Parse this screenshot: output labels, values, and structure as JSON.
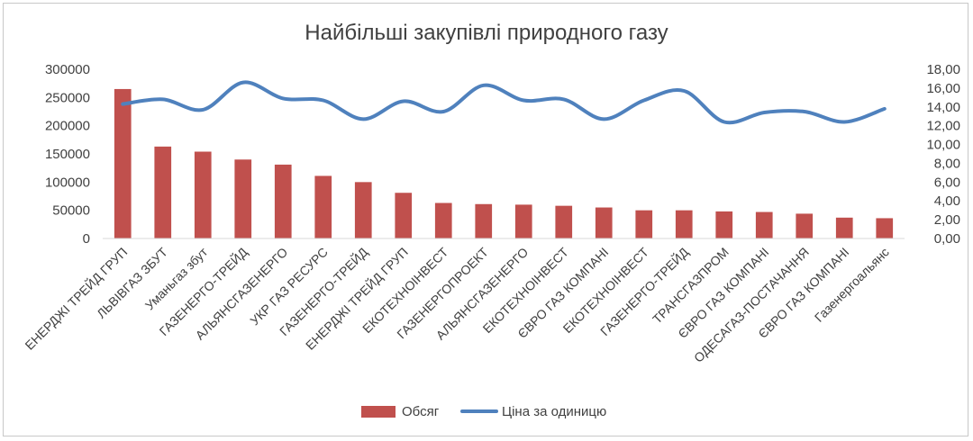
{
  "chart_data": {
    "type": "bar",
    "title": "Найбільші закупівлі природного газу",
    "categories": [
      "ЕНЕРДЖІ ТРЕЙД ГРУП",
      "ЛЬВІВГАЗ ЗБУТ",
      "Уманьгаз збут",
      "ГАЗЕНЕРГО-ТРЕЙД",
      "АЛЬЯНСГАЗЕНЕРГО",
      "УКР ГАЗ РЕСУРС",
      "ГАЗЕНЕРГО-ТРЕЙД",
      "ЕНЕРДЖІ ТРЕЙД ГРУП",
      "ЕКОТЕХНОІНВЕСТ",
      "ГАЗЕНЕРГОПРОЕКТ",
      "АЛЬЯНСГАЗЕНЕРГО",
      "ЕКОТЕХНОІНВЕСТ",
      "ЄВРО ГАЗ КОМПАНІ",
      "ЕКОТЕХНОІНВЕСТ",
      "ГАЗЕНЕРГО-ТРЕЙД",
      "ТРАНСГАЗПРОМ",
      "ЄВРО ГАЗ КОМПАНІ",
      "ОДЕСАГАЗ-ПОСТАЧАННЯ",
      "ЄВРО ГАЗ КОМПАНІ",
      "Газенергоальянс"
    ],
    "series": [
      {
        "name": "Обсяг",
        "type": "bar",
        "axis": "left",
        "color": "#c0504d",
        "values": [
          265000,
          163000,
          154000,
          140000,
          131000,
          111000,
          100000,
          81000,
          63000,
          61000,
          60000,
          58000,
          55000,
          50000,
          50000,
          48000,
          47000,
          44000,
          37000,
          36000
        ]
      },
      {
        "name": "Ціна за одиницю",
        "type": "line",
        "smooth": true,
        "axis": "right",
        "color": "#4f81bd",
        "values": [
          14.3,
          14.8,
          13.7,
          16.6,
          14.9,
          14.7,
          12.7,
          14.6,
          13.5,
          16.3,
          14.7,
          14.8,
          12.7,
          14.7,
          15.7,
          12.4,
          13.4,
          13.5,
          12.4,
          13.8
        ]
      }
    ],
    "y_left": {
      "min": 0,
      "max": 300000,
      "step": 50000,
      "ticks": [
        "0",
        "50000",
        "100000",
        "150000",
        "200000",
        "250000",
        "300000"
      ]
    },
    "y_right": {
      "min": 0,
      "max": 18,
      "step": 2,
      "ticks": [
        "0,00",
        "2,00",
        "4,00",
        "6,00",
        "8,00",
        "10,00",
        "12,00",
        "14,00",
        "16,00",
        "18,00"
      ]
    },
    "grid": false,
    "legend_position": "bottom"
  }
}
